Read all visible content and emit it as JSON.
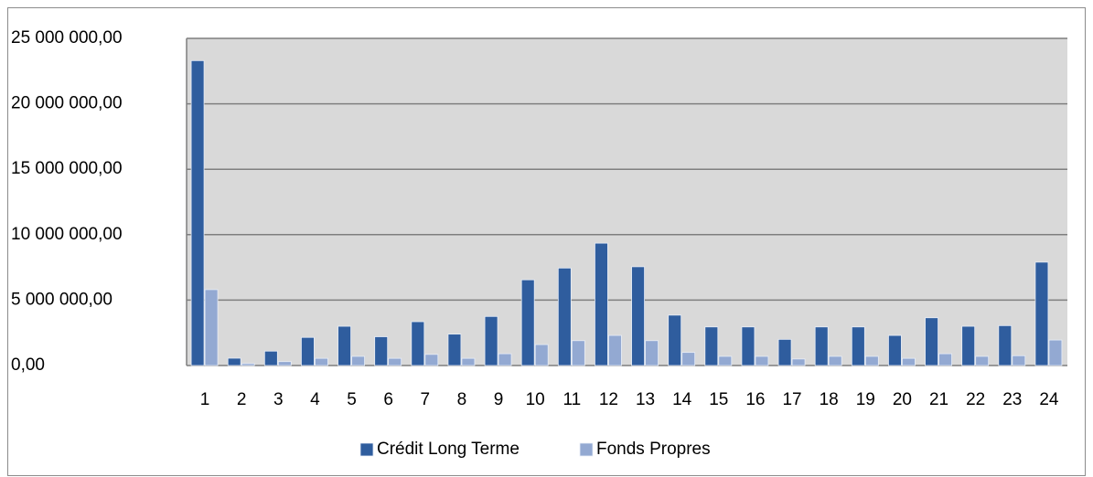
{
  "chart_data": {
    "type": "bar",
    "categories": [
      "1",
      "2",
      "3",
      "4",
      "5",
      "6",
      "7",
      "8",
      "9",
      "10",
      "11",
      "12",
      "13",
      "14",
      "15",
      "16",
      "17",
      "18",
      "19",
      "20",
      "21",
      "22",
      "23",
      "24"
    ],
    "series": [
      {
        "name": "Crédit Long Terme",
        "color": "#2f5d9e",
        "values": [
          23300000,
          560000,
          1100000,
          2150000,
          3000000,
          2200000,
          3350000,
          2400000,
          3750000,
          6550000,
          7450000,
          9350000,
          7550000,
          3850000,
          2950000,
          2950000,
          2000000,
          2950000,
          2950000,
          2300000,
          3650000,
          3000000,
          3050000,
          7900000
        ]
      },
      {
        "name": "Fonds Propres",
        "color": "#93a9d2",
        "values": [
          5800000,
          150000,
          300000,
          550000,
          700000,
          550000,
          850000,
          550000,
          900000,
          1600000,
          1900000,
          2300000,
          1900000,
          1000000,
          700000,
          700000,
          500000,
          700000,
          700000,
          550000,
          900000,
          700000,
          750000,
          1950000
        ]
      }
    ],
    "ylim": [
      0,
      25000000
    ],
    "yticks": [
      {
        "value": 0,
        "label": "0,00"
      },
      {
        "value": 5000000,
        "label": "5 000 000,00"
      },
      {
        "value": 10000000,
        "label": "10 000 000,00"
      },
      {
        "value": 15000000,
        "label": "15 000 000,00"
      },
      {
        "value": 20000000,
        "label": "20 000 000,00"
      },
      {
        "value": 25000000,
        "label": "25 000 000,00"
      }
    ],
    "grid": true,
    "legend": "bottom"
  }
}
